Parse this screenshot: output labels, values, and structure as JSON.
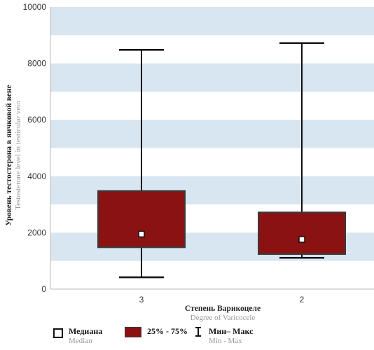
{
  "chart_data": {
    "type": "box",
    "categories": [
      "3",
      "2"
    ],
    "boxes": [
      {
        "category": "3",
        "min": 420,
        "q1": 1480,
        "median": 1950,
        "q3": 3480,
        "max": 8480
      },
      {
        "category": "2",
        "min": 1110,
        "q1": 1240,
        "median": 1760,
        "q3": 2720,
        "max": 8720
      }
    ],
    "ylim": [
      0,
      10000
    ],
    "yticks": [
      0,
      2000,
      4000,
      6000,
      8000,
      10000
    ],
    "ylabel_ru": "Уровень тестостерона в яичковой вене",
    "ylabel_en": "Testosterone level in testicular vein",
    "xlabel_ru": "Степень Варикоцеле",
    "xlabel_en": "Degree of Varicocele",
    "background_bands": true,
    "colors": {
      "box": "#8b1212",
      "band": "#d8e6f2",
      "outline": "#3a3a3a"
    }
  },
  "legend": {
    "median_ru": "Медиана",
    "median_en": "Median",
    "box_label": "25% - 75%",
    "range_ru": "Мин– Макс",
    "range_en": "Min - Max"
  }
}
